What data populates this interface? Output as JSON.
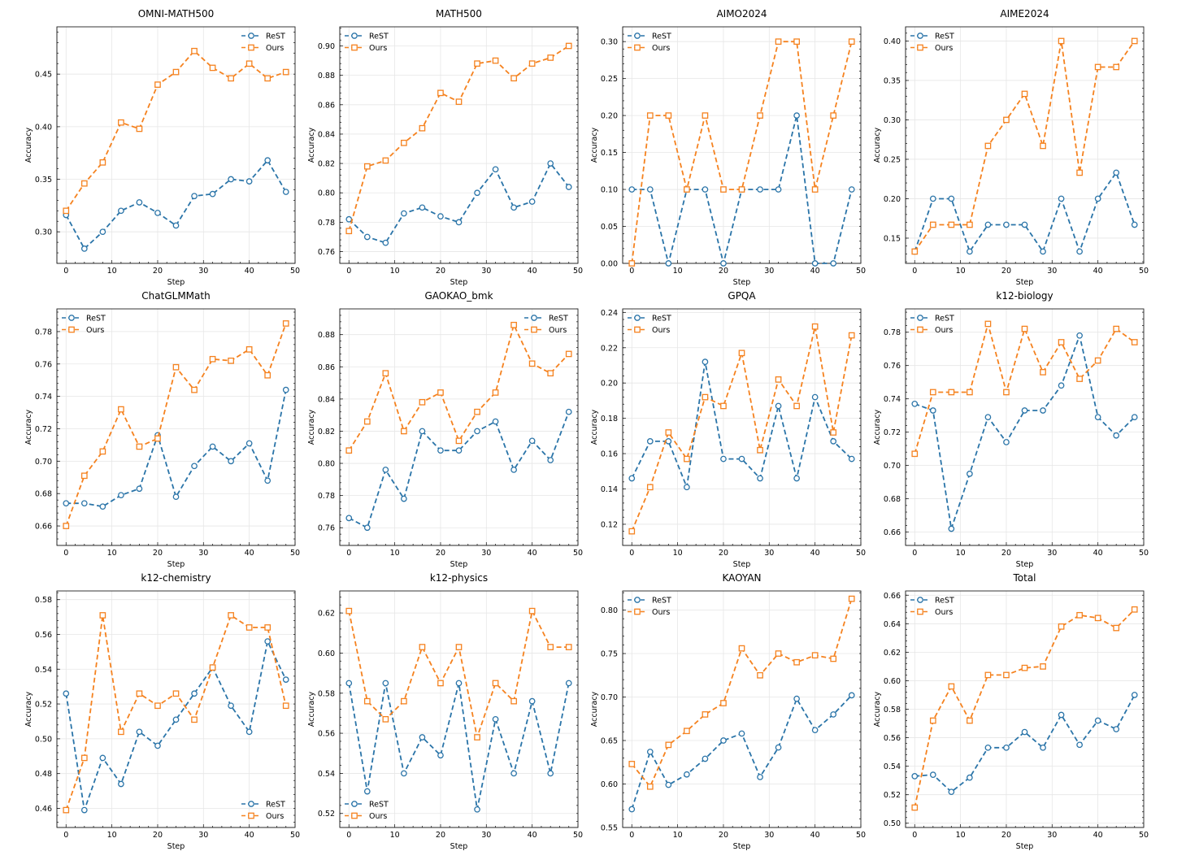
{
  "figure": {
    "colors": {
      "ReST": "#2a74a8",
      "Ours": "#f5821f"
    }
  },
  "chart_data": [
    {
      "type": "line",
      "title": "OMNI-MATH500",
      "xlabel": "Step",
      "ylabel": "Accuracy",
      "xlim": [
        -2,
        50
      ],
      "ylim": [
        0.27,
        0.495
      ],
      "xticks": [
        0,
        10,
        20,
        30,
        40,
        50
      ],
      "yticks": [
        0.3,
        0.35,
        0.4,
        0.45
      ],
      "legend": "top-right",
      "x": [
        0,
        4,
        8,
        12,
        16,
        20,
        24,
        28,
        32,
        36,
        40,
        44,
        48
      ],
      "series": [
        {
          "name": "ReST",
          "values": [
            0.316,
            0.284,
            0.3,
            0.32,
            0.328,
            0.318,
            0.306,
            0.334,
            0.336,
            0.35,
            0.348,
            0.368,
            0.338
          ]
        },
        {
          "name": "Ours",
          "values": [
            0.32,
            0.346,
            0.366,
            0.404,
            0.398,
            0.44,
            0.452,
            0.472,
            0.456,
            0.446,
            0.46,
            0.446,
            0.452
          ]
        }
      ]
    },
    {
      "type": "line",
      "title": "MATH500",
      "xlabel": "Step",
      "ylabel": "Accuracy",
      "xlim": [
        -2,
        50
      ],
      "ylim": [
        0.752,
        0.913
      ],
      "xticks": [
        0,
        10,
        20,
        30,
        40,
        50
      ],
      "yticks": [
        0.76,
        0.78,
        0.8,
        0.82,
        0.84,
        0.86,
        0.88,
        0.9
      ],
      "legend": "top-left",
      "x": [
        0,
        4,
        8,
        12,
        16,
        20,
        24,
        28,
        32,
        36,
        40,
        44,
        48
      ],
      "series": [
        {
          "name": "ReST",
          "values": [
            0.782,
            0.77,
            0.766,
            0.786,
            0.79,
            0.784,
            0.78,
            0.8,
            0.816,
            0.79,
            0.794,
            0.82,
            0.804
          ]
        },
        {
          "name": "Ours",
          "values": [
            0.774,
            0.818,
            0.822,
            0.834,
            0.844,
            0.868,
            0.862,
            0.888,
            0.89,
            0.878,
            0.888,
            0.892,
            0.9
          ]
        }
      ]
    },
    {
      "type": "line",
      "title": "AIMO2024",
      "xlabel": "Step",
      "ylabel": "Accuracy",
      "xlim": [
        -2,
        50
      ],
      "ylim": [
        0.0,
        0.32
      ],
      "xticks": [
        0,
        10,
        20,
        30,
        40,
        50
      ],
      "yticks": [
        0.0,
        0.05,
        0.1,
        0.15,
        0.2,
        0.25,
        0.3
      ],
      "legend": "top-left",
      "x": [
        0,
        4,
        8,
        12,
        16,
        20,
        24,
        28,
        32,
        36,
        40,
        44,
        48
      ],
      "series": [
        {
          "name": "ReST",
          "values": [
            0.1,
            0.1,
            0.0,
            0.1,
            0.1,
            0.0,
            0.1,
            0.1,
            0.1,
            0.2,
            0.0,
            0.0,
            0.1
          ]
        },
        {
          "name": "Ours",
          "values": [
            0.0,
            0.2,
            0.2,
            0.1,
            0.2,
            0.1,
            0.1,
            0.2,
            0.3,
            0.3,
            0.1,
            0.2,
            0.3
          ]
        }
      ]
    },
    {
      "type": "line",
      "title": "AIME2024",
      "xlabel": "Step",
      "ylabel": "Accuracy",
      "xlim": [
        -2,
        50
      ],
      "ylim": [
        0.118,
        0.418
      ],
      "xticks": [
        0,
        10,
        20,
        30,
        40,
        50
      ],
      "yticks": [
        0.15,
        0.2,
        0.25,
        0.3,
        0.35,
        0.4
      ],
      "legend": "top-left",
      "x": [
        0,
        4,
        8,
        12,
        16,
        20,
        24,
        28,
        32,
        36,
        40,
        44,
        48
      ],
      "series": [
        {
          "name": "ReST",
          "values": [
            0.133,
            0.2,
            0.2,
            0.133,
            0.167,
            0.167,
            0.167,
            0.133,
            0.2,
            0.133,
            0.2,
            0.233,
            0.167
          ]
        },
        {
          "name": "Ours",
          "values": [
            0.133,
            0.167,
            0.167,
            0.167,
            0.267,
            0.3,
            0.333,
            0.267,
            0.4,
            0.233,
            0.367,
            0.367,
            0.4
          ]
        }
      ]
    },
    {
      "type": "line",
      "title": "ChatGLMMath",
      "xlabel": "Step",
      "ylabel": "Accuracy",
      "xlim": [
        -2,
        50
      ],
      "ylim": [
        0.648,
        0.794
      ],
      "xticks": [
        0,
        10,
        20,
        30,
        40,
        50
      ],
      "yticks": [
        0.66,
        0.68,
        0.7,
        0.72,
        0.74,
        0.76,
        0.78
      ],
      "legend": "top-left",
      "x": [
        0,
        4,
        8,
        12,
        16,
        20,
        24,
        28,
        32,
        36,
        40,
        44,
        48
      ],
      "series": [
        {
          "name": "ReST",
          "values": [
            0.674,
            0.674,
            0.672,
            0.679,
            0.683,
            0.716,
            0.678,
            0.697,
            0.709,
            0.7,
            0.711,
            0.688,
            0.744
          ]
        },
        {
          "name": "Ours",
          "values": [
            0.66,
            0.691,
            0.706,
            0.732,
            0.709,
            0.714,
            0.758,
            0.744,
            0.763,
            0.762,
            0.769,
            0.753,
            0.785
          ]
        }
      ]
    },
    {
      "type": "line",
      "title": "GAOKAO_bmk",
      "xlabel": "Step",
      "ylabel": "Accuracy",
      "xlim": [
        -2,
        50
      ],
      "ylim": [
        0.749,
        0.896
      ],
      "xticks": [
        0,
        10,
        20,
        30,
        40,
        50
      ],
      "yticks": [
        0.76,
        0.78,
        0.8,
        0.82,
        0.84,
        0.86,
        0.88
      ],
      "legend": "top-right",
      "x": [
        0,
        4,
        8,
        12,
        16,
        20,
        24,
        28,
        32,
        36,
        40,
        44,
        48
      ],
      "series": [
        {
          "name": "ReST",
          "values": [
            0.766,
            0.76,
            0.796,
            0.778,
            0.82,
            0.808,
            0.808,
            0.82,
            0.826,
            0.796,
            0.814,
            0.802,
            0.832
          ]
        },
        {
          "name": "Ours",
          "values": [
            0.808,
            0.826,
            0.856,
            0.82,
            0.838,
            0.844,
            0.814,
            0.832,
            0.844,
            0.886,
            0.862,
            0.856,
            0.868
          ]
        }
      ]
    },
    {
      "type": "line",
      "title": "GPQA",
      "xlabel": "Step",
      "ylabel": "Accuracy",
      "xlim": [
        -2,
        50
      ],
      "ylim": [
        0.108,
        0.242
      ],
      "xticks": [
        0,
        10,
        20,
        30,
        40,
        50
      ],
      "yticks": [
        0.12,
        0.14,
        0.16,
        0.18,
        0.2,
        0.22,
        0.24
      ],
      "legend": "top-left",
      "x": [
        0,
        4,
        8,
        12,
        16,
        20,
        24,
        28,
        32,
        36,
        40,
        44,
        48
      ],
      "series": [
        {
          "name": "ReST",
          "values": [
            0.146,
            0.167,
            0.167,
            0.141,
            0.212,
            0.157,
            0.157,
            0.146,
            0.187,
            0.146,
            0.192,
            0.167,
            0.157
          ]
        },
        {
          "name": "Ours",
          "values": [
            0.116,
            0.141,
            0.172,
            0.157,
            0.192,
            0.187,
            0.217,
            0.162,
            0.202,
            0.187,
            0.232,
            0.172,
            0.227
          ]
        }
      ]
    },
    {
      "type": "line",
      "title": "k12-biology",
      "xlabel": "Step",
      "ylabel": "Accuracy",
      "xlim": [
        -2,
        50
      ],
      "ylim": [
        0.652,
        0.794
      ],
      "xticks": [
        0,
        10,
        20,
        30,
        40,
        50
      ],
      "yticks": [
        0.66,
        0.68,
        0.7,
        0.72,
        0.74,
        0.76,
        0.78
      ],
      "legend": "top-left",
      "x": [
        0,
        4,
        8,
        12,
        16,
        20,
        24,
        28,
        32,
        36,
        40,
        44,
        48
      ],
      "series": [
        {
          "name": "ReST",
          "values": [
            0.737,
            0.733,
            0.662,
            0.695,
            0.729,
            0.714,
            0.733,
            0.733,
            0.748,
            0.778,
            0.729,
            0.718,
            0.729
          ]
        },
        {
          "name": "Ours",
          "values": [
            0.707,
            0.744,
            0.744,
            0.744,
            0.785,
            0.744,
            0.782,
            0.756,
            0.774,
            0.752,
            0.763,
            0.782,
            0.774
          ]
        }
      ]
    },
    {
      "type": "line",
      "title": "k12-chemistry",
      "xlabel": "Step",
      "ylabel": "Accuracy",
      "xlim": [
        -2,
        50
      ],
      "ylim": [
        0.449,
        0.585
      ],
      "xticks": [
        0,
        10,
        20,
        30,
        40,
        50
      ],
      "yticks": [
        0.46,
        0.48,
        0.5,
        0.52,
        0.54,
        0.56,
        0.58
      ],
      "legend": "bottom-right",
      "x": [
        0,
        4,
        8,
        12,
        16,
        20,
        24,
        28,
        32,
        36,
        40,
        44,
        48
      ],
      "series": [
        {
          "name": "ReST",
          "values": [
            0.526,
            0.459,
            0.489,
            0.474,
            0.504,
            0.496,
            0.511,
            0.526,
            0.541,
            0.519,
            0.504,
            0.556,
            0.534
          ]
        },
        {
          "name": "Ours",
          "values": [
            0.459,
            0.489,
            0.571,
            0.504,
            0.526,
            0.519,
            0.526,
            0.511,
            0.541,
            0.571,
            0.564,
            0.564,
            0.519
          ]
        }
      ]
    },
    {
      "type": "line",
      "title": "k12-physics",
      "xlabel": "Step",
      "ylabel": "Accuracy",
      "xlim": [
        -2,
        50
      ],
      "ylim": [
        0.513,
        0.631
      ],
      "xticks": [
        0,
        10,
        20,
        30,
        40,
        50
      ],
      "yticks": [
        0.52,
        0.54,
        0.56,
        0.58,
        0.6,
        0.62
      ],
      "legend": "bottom-left",
      "x": [
        0,
        4,
        8,
        12,
        16,
        20,
        24,
        28,
        32,
        36,
        40,
        44,
        48
      ],
      "series": [
        {
          "name": "ReST",
          "values": [
            0.585,
            0.531,
            0.585,
            0.54,
            0.558,
            0.549,
            0.585,
            0.522,
            0.567,
            0.54,
            0.576,
            0.54,
            0.585
          ]
        },
        {
          "name": "Ours",
          "values": [
            0.621,
            0.576,
            0.567,
            0.576,
            0.603,
            0.585,
            0.603,
            0.558,
            0.585,
            0.576,
            0.621,
            0.603,
            0.603
          ]
        }
      ]
    },
    {
      "type": "line",
      "title": "KAOYAN",
      "xlabel": "Step",
      "ylabel": "Accuracy",
      "xlim": [
        -2,
        50
      ],
      "ylim": [
        0.55,
        0.822
      ],
      "xticks": [
        0,
        10,
        20,
        30,
        40,
        50
      ],
      "yticks": [
        0.55,
        0.6,
        0.65,
        0.7,
        0.75,
        0.8
      ],
      "legend": "top-left",
      "x": [
        0,
        4,
        8,
        12,
        16,
        20,
        24,
        28,
        32,
        36,
        40,
        44,
        48
      ],
      "series": [
        {
          "name": "ReST",
          "values": [
            0.571,
            0.637,
            0.599,
            0.611,
            0.629,
            0.65,
            0.658,
            0.608,
            0.642,
            0.698,
            0.662,
            0.68,
            0.702
          ]
        },
        {
          "name": "Ours",
          "values": [
            0.623,
            0.597,
            0.645,
            0.661,
            0.68,
            0.693,
            0.756,
            0.725,
            0.75,
            0.74,
            0.748,
            0.744,
            0.813
          ]
        }
      ]
    },
    {
      "type": "line",
      "title": "Total",
      "xlabel": "Step",
      "ylabel": "Accuracy",
      "xlim": [
        -2,
        50
      ],
      "ylim": [
        0.497,
        0.663
      ],
      "xticks": [
        0,
        10,
        20,
        30,
        40,
        50
      ],
      "yticks": [
        0.5,
        0.52,
        0.54,
        0.56,
        0.58,
        0.6,
        0.62,
        0.64,
        0.66
      ],
      "legend": "top-left",
      "x": [
        0,
        4,
        8,
        12,
        16,
        20,
        24,
        28,
        32,
        36,
        40,
        44,
        48
      ],
      "series": [
        {
          "name": "ReST",
          "values": [
            0.533,
            0.534,
            0.522,
            0.532,
            0.553,
            0.553,
            0.564,
            0.553,
            0.576,
            0.555,
            0.572,
            0.566,
            0.59
          ]
        },
        {
          "name": "Ours",
          "values": [
            0.511,
            0.572,
            0.596,
            0.572,
            0.604,
            0.604,
            0.609,
            0.61,
            0.638,
            0.646,
            0.644,
            0.637,
            0.65
          ]
        }
      ]
    }
  ]
}
